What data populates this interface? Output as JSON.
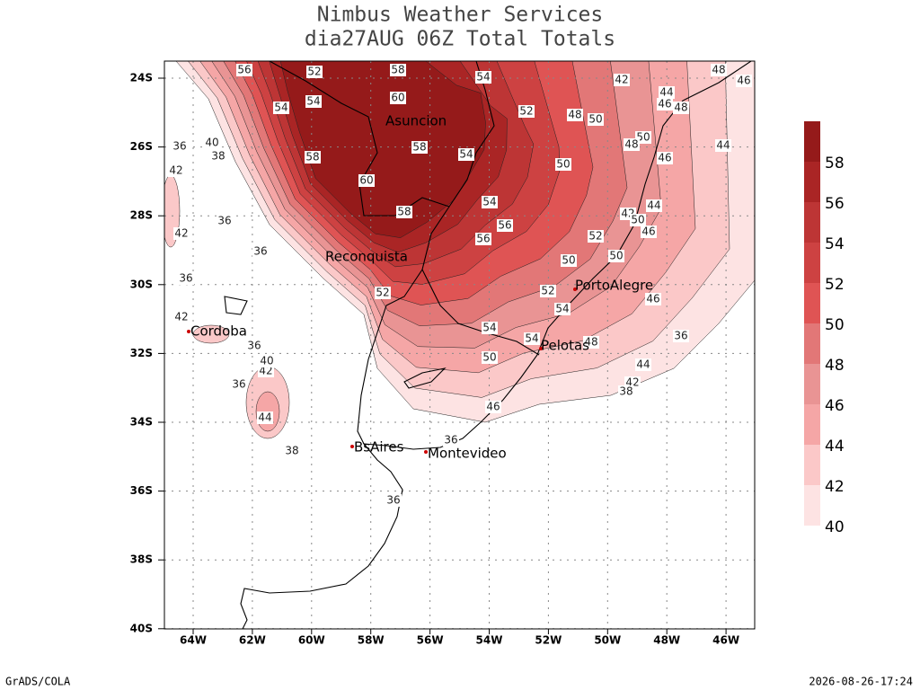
{
  "header": {
    "title": "Nimbus Weather Services",
    "subtitle": "dia27AUG 06Z Total Totals"
  },
  "map": {
    "lat_labels": [
      "24S",
      "26S",
      "28S",
      "30S",
      "32S",
      "34S",
      "36S",
      "38S",
      "40S"
    ],
    "lon_labels": [
      "64W",
      "62W",
      "60W",
      "58W",
      "56W",
      "54W",
      "52W",
      "50W",
      "48W",
      "46W"
    ],
    "cities": [
      "Asuncion",
      "Reconquista",
      "Cordoba",
      "PortoAlegre",
      "Pelotas",
      "BsAires",
      "Montevideo"
    ],
    "contour_labels": [
      56,
      52,
      58,
      54,
      54,
      54,
      60,
      52,
      48,
      50,
      44,
      46,
      48,
      42,
      48,
      46,
      58,
      58,
      54,
      50,
      50,
      48,
      46,
      44,
      60,
      58,
      54,
      56,
      56,
      52,
      50,
      50,
      42,
      50,
      44,
      46,
      52,
      52,
      54,
      46,
      54,
      54,
      48,
      50,
      44,
      42,
      46,
      44,
      42,
      36,
      40,
      36,
      38,
      36,
      36,
      36,
      40,
      38,
      42,
      42,
      36,
      36,
      36,
      42,
      36,
      38
    ]
  },
  "colorbar": {
    "levels": [
      40,
      42,
      44,
      46,
      48,
      50,
      52,
      54,
      56,
      58
    ],
    "colors": [
      "#fde3e3",
      "#fbc8c8",
      "#f5a6a6",
      "#e99494",
      "#e27777",
      "#df5454",
      "#cd4242",
      "#bd3535",
      "#aa2525",
      "#951a1a"
    ]
  },
  "footer": {
    "left": "GrADS/COLA",
    "right": "2026-08-26-17:24"
  }
}
